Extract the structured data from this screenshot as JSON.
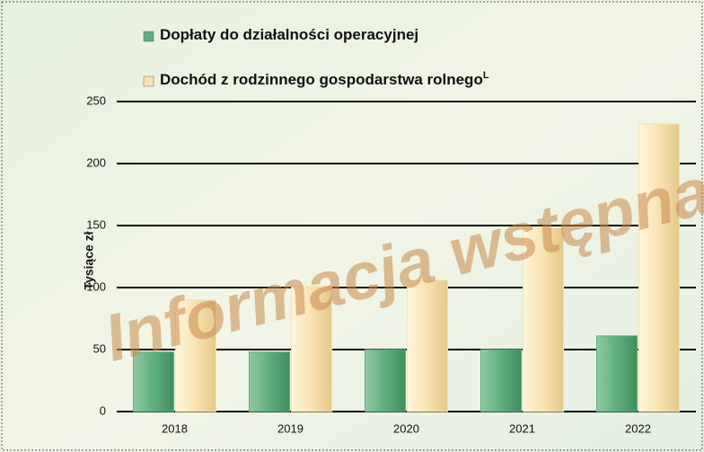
{
  "chart_data": {
    "type": "bar",
    "categories": [
      "2018",
      "2019",
      "2020",
      "2021",
      "2022"
    ],
    "series": [
      {
        "name": "Dopłaty do działalności operacyjnej",
        "color": "#5fae7c",
        "values": [
          48,
          48,
          50,
          50,
          61
        ]
      },
      {
        "name": "Dochód z rodzinnego gospodarstwa rolnego",
        "footnote_mark": "L",
        "color": "#f7e3b0",
        "values": [
          90,
          101,
          106,
          148,
          232
        ]
      }
    ],
    "y_label": "Tysiące zł",
    "watermark": "Informacja wstępna",
    "ylim": [
      0,
      250
    ],
    "yticks": [
      0,
      50,
      100,
      150,
      200,
      250
    ],
    "grid": true
  }
}
